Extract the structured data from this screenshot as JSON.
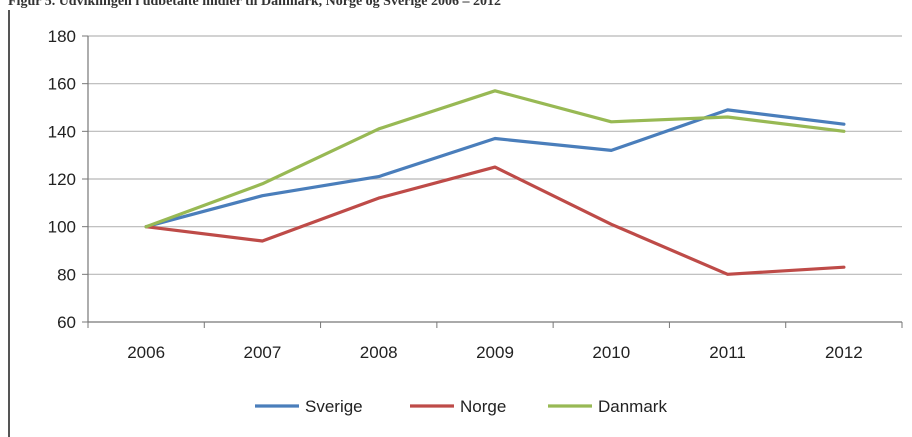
{
  "figure_title": "Figur 5. Udviklingen i udbetalte midler til Danmark, Norge og Sverige 2006 – 2012",
  "chart_data": {
    "type": "line",
    "title": "",
    "xlabel": "",
    "ylabel": "",
    "categories": [
      "2006",
      "2007",
      "2008",
      "2009",
      "2010",
      "2011",
      "2012"
    ],
    "ylim": [
      60,
      180
    ],
    "yticks": [
      60,
      80,
      100,
      120,
      140,
      160,
      180
    ],
    "grid": true,
    "legend_position": "bottom",
    "series": [
      {
        "name": "Sverige",
        "color": "#4a7ebb",
        "values": [
          100,
          113,
          121,
          137,
          132,
          149,
          143
        ]
      },
      {
        "name": "Norge",
        "color": "#be4b48",
        "values": [
          100,
          94,
          112,
          125,
          101,
          80,
          83
        ]
      },
      {
        "name": "Danmark",
        "color": "#98b954",
        "values": [
          100,
          118,
          141,
          157,
          144,
          146,
          140
        ]
      }
    ]
  }
}
